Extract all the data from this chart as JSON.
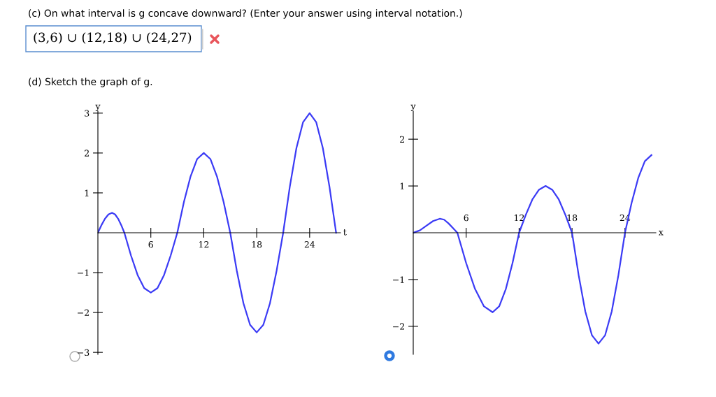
{
  "chart_data": [
    {
      "type": "other",
      "annotations": [
        "(c) On what interval is g concave downward? (Enter your answer using interval notation.)",
        "(3,6) ∪ (12,18) ∪ (24,27)",
        "(d) Sketch the graph of g."
      ]
    },
    {
      "type": "line",
      "xlabel": "t",
      "ylabel": "y",
      "x": [
        0,
        0.4,
        0.8,
        1.2,
        1.6,
        1.95,
        2.3,
        2.65,
        3,
        3.75,
        4.5,
        5.25,
        6,
        6.75,
        7.5,
        8.25,
        9,
        9.75,
        10.5,
        11.25,
        12,
        12.75,
        13.5,
        14.25,
        15,
        15.75,
        16.5,
        17.25,
        18,
        18.75,
        19.5,
        20.25,
        21,
        21.75,
        22.5,
        23.25,
        24,
        24.75,
        25.5,
        26.25,
        27
      ],
      "series": [
        {
          "color": "#3b3bf5",
          "values": [
            0,
            0.19,
            0.35,
            0.46,
            0.5,
            0.46,
            0.35,
            0.19,
            0,
            -0.57,
            -1.06,
            -1.39,
            -1.5,
            -1.39,
            -1.06,
            -0.57,
            0,
            0.77,
            1.41,
            1.85,
            2,
            1.85,
            1.41,
            0.77,
            0,
            -0.96,
            -1.77,
            -2.31,
            -2.5,
            -2.31,
            -1.77,
            -0.96,
            0,
            1.15,
            2.12,
            2.77,
            3,
            2.77,
            2.12,
            1.15,
            0
          ]
        }
      ],
      "xlim": [
        0,
        27.5
      ],
      "ylim": [
        -3.05,
        3.05
      ],
      "xticks": [
        6,
        12,
        18,
        24
      ],
      "yticks": [
        {
          "value": -3,
          "label": "−3"
        },
        {
          "value": -2,
          "label": "−2"
        },
        {
          "value": -1,
          "label": "−1"
        },
        1,
        2,
        3
      ]
    },
    {
      "type": "line",
      "xlabel": "x",
      "ylabel": "y",
      "x": [
        0,
        0.75,
        1.5,
        2.25,
        3,
        3.5,
        4,
        4.5,
        5,
        6,
        7,
        8,
        9,
        9.75,
        10.5,
        11.25,
        12,
        12.75,
        13.5,
        14.25,
        15,
        15.75,
        16.5,
        17.25,
        18,
        18.75,
        19.5,
        20.25,
        21,
        21.75,
        22.5,
        23.25,
        24,
        24.75,
        25.5,
        26.25,
        27
      ],
      "series": [
        {
          "color": "#3b3bf5",
          "values": [
            0,
            0.05,
            0.15,
            0.25,
            0.3,
            0.28,
            0.2,
            0.1,
            0,
            -0.65,
            -1.2,
            -1.57,
            -1.7,
            -1.57,
            -1.2,
            -0.65,
            0,
            0.38,
            0.71,
            0.92,
            1,
            0.92,
            0.71,
            0.38,
            0,
            -0.91,
            -1.68,
            -2.19,
            -2.37,
            -2.19,
            -1.68,
            -0.91,
            0,
            0.64,
            1.17,
            1.53,
            1.66
          ]
        }
      ],
      "xlim": [
        0,
        27.5
      ],
      "ylim": [
        -2.6,
        2.6
      ],
      "xticks": [
        6,
        12,
        18,
        24
      ],
      "yticks": [
        {
          "value": -2,
          "label": "−2"
        },
        {
          "value": -1,
          "label": "−1"
        },
        1,
        2
      ]
    }
  ]
}
